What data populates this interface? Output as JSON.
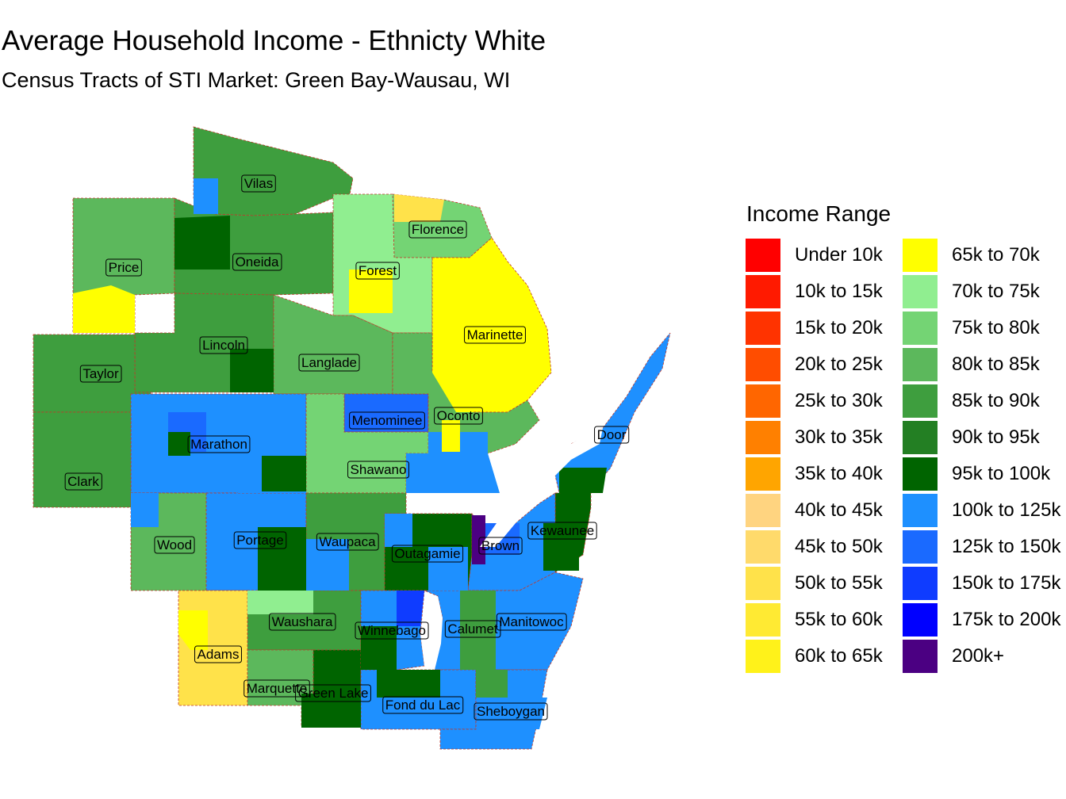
{
  "title": "Average Household Income - Ethnicty White",
  "subtitle": "Census Tracts of STI Market: Green Bay-Wausau, WI",
  "legend": {
    "title": "Income Range",
    "items": [
      {
        "label": "Under 10k",
        "color": "#FF0000"
      },
      {
        "label": "10k to 15k",
        "color": "#FF1A00"
      },
      {
        "label": "15k to 20k",
        "color": "#FF3300"
      },
      {
        "label": "20k to 25k",
        "color": "#FF4D00"
      },
      {
        "label": "25k to 30k",
        "color": "#FF6600"
      },
      {
        "label": "30k to 35k",
        "color": "#FF8000"
      },
      {
        "label": "35k to 40k",
        "color": "#FFA500"
      },
      {
        "label": "40k to 45k",
        "color": "#FFD480"
      },
      {
        "label": "45k to 50k",
        "color": "#FFDA6B"
      },
      {
        "label": "50k to 55k",
        "color": "#FFE24A"
      },
      {
        "label": "55k to 60k",
        "color": "#FFEA33"
      },
      {
        "label": "60k to 65k",
        "color": "#FFF21A"
      },
      {
        "label": "65k to 70k",
        "color": "#FFFF00"
      },
      {
        "label": "70k to 75k",
        "color": "#90EE90"
      },
      {
        "label": "75k to 80k",
        "color": "#74D474"
      },
      {
        "label": "80k to 85k",
        "color": "#5CB85C"
      },
      {
        "label": "85k to 90k",
        "color": "#3E9E3E"
      },
      {
        "label": "90k to 95k",
        "color": "#237F23"
      },
      {
        "label": "95k to 100k",
        "color": "#006400"
      },
      {
        "label": "100k to 125k",
        "color": "#1E90FF"
      },
      {
        "label": "125k to 150k",
        "color": "#1A6AFF"
      },
      {
        "label": "150k to 175k",
        "color": "#0F3CFF"
      },
      {
        "label": "175k to 200k",
        "color": "#0000FF"
      },
      {
        "label": "200k+",
        "color": "#4B0082"
      }
    ]
  },
  "counties": [
    {
      "name": "Vilas",
      "color": "#3E9E3E"
    },
    {
      "name": "Florence",
      "color": "#74D474"
    },
    {
      "name": "Price",
      "color": "#5CB85C"
    },
    {
      "name": "Oneida",
      "color": "#3E9E3E"
    },
    {
      "name": "Forest",
      "color": "#90EE90"
    },
    {
      "name": "Marinette",
      "color": "#FFFF00"
    },
    {
      "name": "Lincoln",
      "color": "#3E9E3E"
    },
    {
      "name": "Taylor",
      "color": "#3E9E3E"
    },
    {
      "name": "Langlade",
      "color": "#5CB85C"
    },
    {
      "name": "Menominee",
      "color": "#1A6AFF"
    },
    {
      "name": "Oconto",
      "color": "#5CB85C"
    },
    {
      "name": "Door",
      "color": "#1E90FF"
    },
    {
      "name": "Marathon",
      "color": "#1E90FF"
    },
    {
      "name": "Clark",
      "color": "#3E9E3E"
    },
    {
      "name": "Shawano",
      "color": "#74D474"
    },
    {
      "name": "Kewaunee",
      "color": "#006400"
    },
    {
      "name": "Wood",
      "color": "#5CB85C"
    },
    {
      "name": "Portage",
      "color": "#1E90FF"
    },
    {
      "name": "Waupaca",
      "color": "#3E9E3E"
    },
    {
      "name": "Outagamie",
      "color": "#006400"
    },
    {
      "name": "Brown",
      "color": "#1E90FF"
    },
    {
      "name": "Waushara",
      "color": "#3E9E3E"
    },
    {
      "name": "Winnebago",
      "color": "#1E90FF"
    },
    {
      "name": "Calumet",
      "color": "#1E90FF"
    },
    {
      "name": "Manitowoc",
      "color": "#1E90FF"
    },
    {
      "name": "Adams",
      "color": "#FFE24A"
    },
    {
      "name": "Marquette",
      "color": "#5CB85C"
    },
    {
      "name": "Green Lake",
      "color": "#006400"
    },
    {
      "name": "Fond du Lac",
      "color": "#1E90FF"
    },
    {
      "name": "Sheboygan",
      "color": "#1E90FF"
    }
  ]
}
